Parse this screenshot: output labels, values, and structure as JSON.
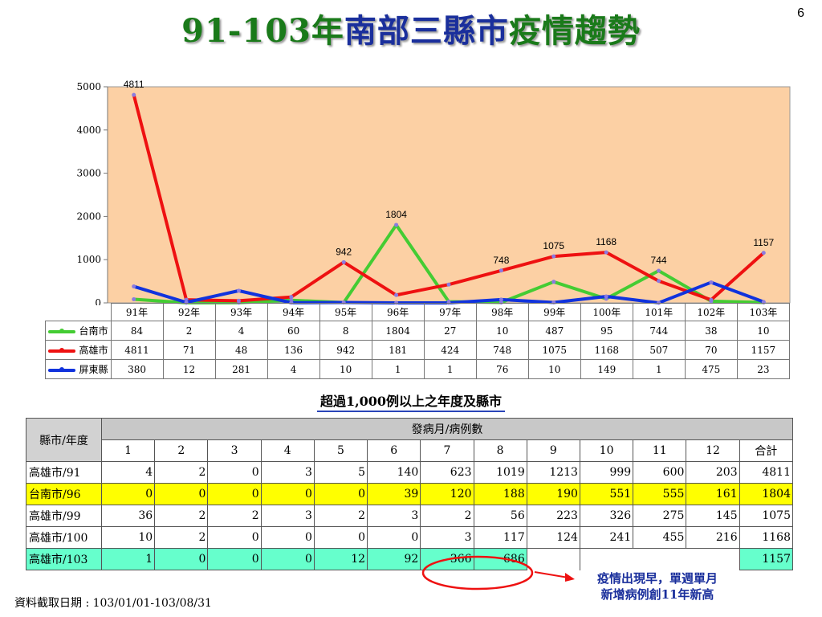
{
  "header": {
    "title_part1": "91-103年",
    "title_part2": "南部三縣市",
    "title_part3": "疫情趨勢",
    "page_number": "6"
  },
  "colors": {
    "plot_background": "#fcd0a4",
    "tainan": "#44cc33",
    "kaohsiung": "#ee1111",
    "pingtung": "#1133dd"
  },
  "chart_data": {
    "type": "line",
    "categories": [
      "91年",
      "92年",
      "93年",
      "94年",
      "95年",
      "96年",
      "97年",
      "98年",
      "99年",
      "100年",
      "101年",
      "102年",
      "103年"
    ],
    "ylim": [
      0,
      5000
    ],
    "yticks": [
      0,
      1000,
      2000,
      3000,
      4000,
      5000
    ],
    "grid": false,
    "series": [
      {
        "name": "台南市",
        "color": "#44cc33",
        "values": [
          84,
          2,
          4,
          60,
          8,
          1804,
          27,
          10,
          487,
          95,
          744,
          38,
          10
        ]
      },
      {
        "name": "高雄市",
        "color": "#ee1111",
        "values": [
          4811,
          71,
          48,
          136,
          942,
          181,
          424,
          748,
          1075,
          1168,
          507,
          70,
          1157
        ]
      },
      {
        "name": "屏東縣",
        "color": "#1133dd",
        "values": [
          380,
          12,
          281,
          4,
          10,
          1,
          1,
          76,
          10,
          149,
          1,
          475,
          23
        ]
      }
    ],
    "data_labels": [
      {
        "category": "91年",
        "series": "高雄市",
        "text": "4811"
      },
      {
        "category": "95年",
        "series": "高雄市",
        "text": "942"
      },
      {
        "category": "96年",
        "series": "台南市",
        "text": "1804"
      },
      {
        "category": "98年",
        "series": "高雄市",
        "text": "748"
      },
      {
        "category": "99年",
        "series": "高雄市",
        "text": "1075"
      },
      {
        "category": "100年",
        "series": "高雄市",
        "text": "1168"
      },
      {
        "category": "101年",
        "series": "台南市",
        "text": "744"
      },
      {
        "category": "103年",
        "series": "高雄市",
        "text": "1157"
      }
    ]
  },
  "subtitle": "超過1,000例以上之年度及縣市",
  "cases_table": {
    "corner_label": "縣市/年度",
    "group_header": "發病月/病例數",
    "months": [
      "1",
      "2",
      "3",
      "4",
      "5",
      "6",
      "7",
      "8",
      "9",
      "10",
      "11",
      "12",
      "合計"
    ],
    "rows": [
      {
        "label": "高雄市/91",
        "highlight": "none",
        "values": [
          "4",
          "2",
          "0",
          "3",
          "5",
          "140",
          "623",
          "1019",
          "1213",
          "999",
          "600",
          "203",
          "4811"
        ]
      },
      {
        "label": "台南市/96",
        "highlight": "yellow",
        "values": [
          "0",
          "0",
          "0",
          "0",
          "0",
          "39",
          "120",
          "188",
          "190",
          "551",
          "555",
          "161",
          "1804"
        ]
      },
      {
        "label": "高雄市/99",
        "highlight": "none",
        "values": [
          "36",
          "2",
          "2",
          "3",
          "2",
          "3",
          "2",
          "56",
          "223",
          "326",
          "275",
          "145",
          "1075"
        ]
      },
      {
        "label": "高雄市/100",
        "highlight": "none",
        "values": [
          "10",
          "2",
          "0",
          "0",
          "0",
          "0",
          "3",
          "117",
          "124",
          "241",
          "455",
          "216",
          "1168"
        ]
      },
      {
        "label": "高雄市/103",
        "highlight": "aqua",
        "values": [
          "1",
          "0",
          "0",
          "0",
          "12",
          "92",
          "366",
          "686",
          "",
          "",
          "",
          "",
          "1157"
        ]
      }
    ]
  },
  "callout": {
    "line1": "疫情出現早，單週單月",
    "line2": "新增病例創11年新高"
  },
  "footer": {
    "date_note": "資料截取日期 : 103/01/01-103/08/31"
  }
}
